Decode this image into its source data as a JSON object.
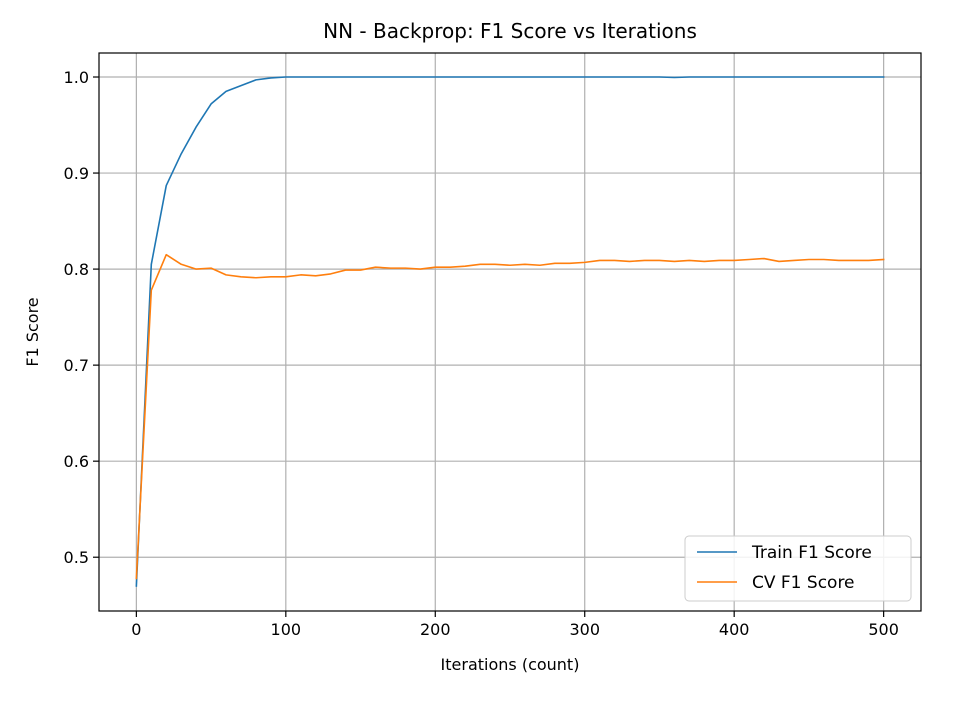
{
  "chart_data": {
    "type": "line",
    "title": "NN - Backprop: F1 Score vs Iterations",
    "xlabel": "Iterations (count)",
    "ylabel": "F1 Score",
    "xlim": [
      -25,
      525
    ],
    "ylim": [
      0.444,
      1.025
    ],
    "xticks": [
      0,
      100,
      200,
      300,
      400,
      500
    ],
    "yticks": [
      0.5,
      0.6,
      0.7,
      0.8,
      0.9,
      1.0
    ],
    "xtick_labels": [
      "0",
      "100",
      "200",
      "300",
      "400",
      "500"
    ],
    "ytick_labels": [
      "0.5",
      "0.6",
      "0.7",
      "0.8",
      "0.9",
      "1.0"
    ],
    "grid": true,
    "legend_position": "bottom-right",
    "x": [
      0,
      10,
      20,
      30,
      40,
      50,
      60,
      70,
      80,
      90,
      100,
      110,
      120,
      130,
      140,
      150,
      160,
      170,
      180,
      190,
      200,
      210,
      220,
      230,
      240,
      250,
      260,
      270,
      280,
      290,
      300,
      310,
      320,
      330,
      340,
      350,
      360,
      370,
      380,
      390,
      400,
      410,
      420,
      430,
      440,
      450,
      460,
      470,
      480,
      490,
      500
    ],
    "series": [
      {
        "name": "Train F1 Score",
        "color": "#1f77b4",
        "values": [
          0.47,
          0.805,
          0.887,
          0.92,
          0.948,
          0.972,
          0.985,
          0.991,
          0.997,
          0.999,
          1.0,
          1.0,
          1.0,
          1.0,
          1.0,
          1.0,
          1.0,
          1.0,
          1.0,
          1.0,
          1.0,
          1.0,
          1.0,
          1.0,
          1.0,
          1.0,
          1.0,
          1.0,
          1.0,
          1.0,
          1.0,
          1.0,
          1.0,
          1.0,
          1.0,
          1.0,
          0.9995,
          1.0,
          1.0,
          1.0,
          1.0,
          1.0,
          1.0,
          1.0,
          1.0,
          1.0,
          1.0,
          1.0,
          1.0,
          1.0,
          1.0
        ]
      },
      {
        "name": "CV F1 Score",
        "color": "#ff7f0e",
        "values": [
          0.478,
          0.778,
          0.815,
          0.805,
          0.8,
          0.801,
          0.794,
          0.792,
          0.791,
          0.792,
          0.792,
          0.794,
          0.793,
          0.795,
          0.799,
          0.799,
          0.802,
          0.801,
          0.801,
          0.8,
          0.802,
          0.802,
          0.803,
          0.805,
          0.805,
          0.804,
          0.805,
          0.804,
          0.806,
          0.806,
          0.807,
          0.809,
          0.809,
          0.808,
          0.809,
          0.809,
          0.808,
          0.809,
          0.808,
          0.809,
          0.809,
          0.81,
          0.811,
          0.808,
          0.809,
          0.81,
          0.81,
          0.809,
          0.809,
          0.809,
          0.81
        ]
      }
    ]
  }
}
